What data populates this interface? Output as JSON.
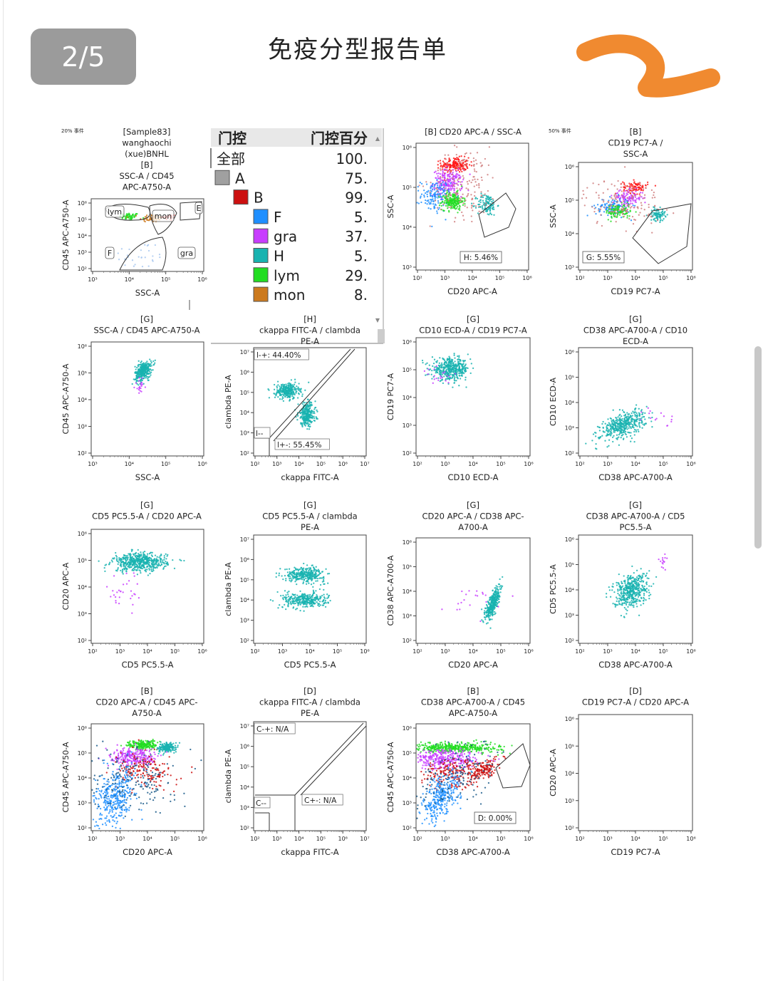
{
  "page_indicator": "2/5",
  "document_title": "免疫分型报告单",
  "colors": {
    "F": "#1f8fff",
    "gra": "#c83dff",
    "H": "#19b3b0",
    "lym": "#22dd22",
    "mon": "#cc7a1e",
    "A": "#a0a0a0",
    "B": "#cc1010",
    "annotation": "#f08a30"
  },
  "gate_table": {
    "header": {
      "gate": "门控",
      "percent": "门控百分"
    },
    "rows": [
      {
        "name": "全部",
        "value": "100.",
        "level": 0,
        "swatch": ""
      },
      {
        "name": "A",
        "value": "75.",
        "level": 1,
        "swatch": "#a0a0a0"
      },
      {
        "name": "B",
        "value": "99.",
        "level": 2,
        "swatch": "#cc1010"
      },
      {
        "name": "F",
        "value": "5.",
        "level": 3,
        "swatch": "#1f8fff"
      },
      {
        "name": "gra",
        "value": "37.",
        "level": 3,
        "swatch": "#c83dff"
      },
      {
        "name": "H",
        "value": "5.",
        "level": 3,
        "swatch": "#19b3b0"
      },
      {
        "name": "lym",
        "value": "29.",
        "level": 3,
        "swatch": "#22dd22"
      },
      {
        "name": "mon",
        "value": "8.",
        "level": 3,
        "swatch": "#cc7a1e"
      }
    ]
  },
  "chart_data": [
    {
      "type": "scatter",
      "id": "p1",
      "title_lines": [
        "[Sample83]",
        "wanghaochi",
        "(xue)BNHL",
        "[B]",
        "SSC-A / CD45",
        "APC-A750-A"
      ],
      "corner_label": "20% 事件",
      "xlabel": "SSC-A",
      "ylabel": "CD45 APC-A750-A",
      "xticks": [
        "10³",
        "10⁴",
        "10⁵",
        "10⁶"
      ],
      "yticks": [
        "10⁶",
        "10⁵",
        "10⁴",
        "10³",
        "10²"
      ],
      "gate_labels": [
        "lym",
        "mon",
        "E",
        "F",
        "gra"
      ],
      "populations": [
        "lym",
        "mon",
        "gra",
        "F",
        "H"
      ]
    },
    {
      "type": "scatter",
      "id": "p2",
      "title_lines": [
        "[B] CD20 APC-A / SSC-A"
      ],
      "xlabel": "CD20 APC-A",
      "ylabel": "SSC-A",
      "xticks": [
        "10²",
        "10³",
        "10⁴",
        "10⁵",
        "10⁶"
      ],
      "yticks": [
        "10⁶",
        "10⁵",
        "10⁴",
        "10³"
      ],
      "gate_stat": "H: 5.46%",
      "populations": [
        "gra",
        "lym",
        "F",
        "H"
      ]
    },
    {
      "type": "scatter",
      "id": "p3",
      "title_lines": [
        "[B]",
        "CD19 PC7-A /",
        "SSC-A"
      ],
      "corner_label": "50% 事件",
      "xlabel": "CD19 PC7-A",
      "ylabel": "SSC-A",
      "xticks": [
        "10²",
        "10³",
        "10⁴",
        "10⁵",
        "10⁶"
      ],
      "yticks": [
        "10⁶",
        "10⁵",
        "10⁴",
        "10³"
      ],
      "gate_stat": "G: 5.55%",
      "populations": [
        "gra",
        "lym",
        "F",
        "H"
      ]
    },
    {
      "type": "scatter",
      "id": "p4",
      "title_lines": [
        "[G]",
        "SSC-A / CD45 APC-A750-A"
      ],
      "xlabel": "SSC-A",
      "ylabel": "CD45 APC-A750-A",
      "xticks": [
        "10³",
        "10⁴",
        "10⁵",
        "10⁶"
      ],
      "yticks": [
        "10⁶",
        "10⁵",
        "10⁴",
        "10³",
        "10²"
      ],
      "populations": [
        "H"
      ]
    },
    {
      "type": "scatter",
      "id": "p5",
      "title_lines": [
        "[H]",
        "ckappa FITC-A / clambda",
        "PE-A"
      ],
      "xlabel": "ckappa FITC-A",
      "ylabel": "clambda PE-A",
      "xticks": [
        "10²",
        "10³",
        "10⁴",
        "10⁵",
        "10⁶",
        "10⁷"
      ],
      "yticks": [
        "10⁷",
        "10⁶",
        "10⁵",
        "10⁴",
        "10³",
        "10²"
      ],
      "quadrants": {
        "upper": "l-+: 44.40%",
        "lower_left": "l--",
        "lower_right": "l+-: 55.45%"
      },
      "populations": [
        "H"
      ]
    },
    {
      "type": "scatter",
      "id": "p6",
      "title_lines": [
        "[G]",
        "CD10 ECD-A / CD19 PC7-A"
      ],
      "xlabel": "CD10 ECD-A",
      "ylabel": "CD19 PC7-A",
      "xticks": [
        "10²",
        "10³",
        "10⁴",
        "10⁵",
        "10⁶"
      ],
      "yticks": [
        "10⁶",
        "10⁵",
        "10⁴",
        "10³",
        "10²"
      ],
      "populations": [
        "H"
      ]
    },
    {
      "type": "scatter",
      "id": "p7",
      "title_lines": [
        "[G]",
        "CD38 APC-A700-A / CD10",
        "ECD-A"
      ],
      "xlabel": "CD38 APC-A700-A",
      "ylabel": "CD10 ECD-A",
      "xticks": [
        "10²",
        "10³",
        "10⁴",
        "10⁵",
        "10⁶"
      ],
      "yticks": [
        "10⁶",
        "10⁵",
        "10⁴",
        "10³",
        "10²"
      ],
      "populations": [
        "H"
      ]
    },
    {
      "type": "scatter",
      "id": "p8",
      "title_lines": [
        "[G]",
        "CD5 PC5.5-A / CD20 APC-A"
      ],
      "xlabel": "CD5 PC5.5-A",
      "ylabel": "CD20 APC-A",
      "xticks": [
        "10²",
        "10³",
        "10⁴",
        "10⁵",
        "10⁶"
      ],
      "yticks": [
        "10⁶",
        "10⁵",
        "10⁴",
        "10³",
        "10²"
      ],
      "populations": [
        "H"
      ]
    },
    {
      "type": "scatter",
      "id": "p9",
      "title_lines": [
        "[G]",
        "CD5 PC5.5-A / clambda",
        "PE-A"
      ],
      "xlabel": "CD5 PC5.5-A",
      "ylabel": "clambda PE-A",
      "xticks": [
        "10²",
        "10³",
        "10⁴",
        "10⁵",
        "10⁶"
      ],
      "yticks": [
        "10⁷",
        "10⁶",
        "10⁵",
        "10⁴",
        "10³",
        "10²"
      ],
      "populations": [
        "H"
      ]
    },
    {
      "type": "scatter",
      "id": "p10",
      "title_lines": [
        "[G]",
        "CD20 APC-A / CD38 APC-",
        "A700-A"
      ],
      "xlabel": "CD20 APC-A",
      "ylabel": "CD38 APC-A700-A",
      "xticks": [
        "10²",
        "10³",
        "10⁴",
        "10⁵",
        "10⁶"
      ],
      "yticks": [
        "10⁶",
        "10⁵",
        "10⁴",
        "10³",
        "10²"
      ],
      "populations": [
        "H"
      ]
    },
    {
      "type": "scatter",
      "id": "p11",
      "title_lines": [
        "[G]",
        "CD38 APC-A700-A / CD5",
        "PC5.5-A"
      ],
      "xlabel": "CD38 APC-A700-A",
      "ylabel": "CD5 PC5.5-A",
      "xticks": [
        "10²",
        "10³",
        "10⁴",
        "10⁵",
        "10⁶"
      ],
      "yticks": [
        "10⁶",
        "10⁵",
        "10⁴",
        "10³",
        "10²"
      ],
      "populations": [
        "H"
      ]
    },
    {
      "type": "scatter",
      "id": "p12",
      "title_lines": [
        "[B]",
        "CD20 APC-A / CD45 APC-",
        "A750-A"
      ],
      "xlabel": "CD20 APC-A",
      "ylabel": "CD45 APC-A750-A",
      "xticks": [
        "10²",
        "10³",
        "10⁴",
        "10⁵",
        "10⁶"
      ],
      "yticks": [
        "10⁶",
        "10⁵",
        "10⁴",
        "10³",
        "10²"
      ],
      "populations": [
        "lym",
        "gra",
        "B",
        "F",
        "H"
      ]
    },
    {
      "type": "scatter",
      "id": "p13",
      "title_lines": [
        "[D]",
        "ckappa FITC-A / clambda",
        "PE-A"
      ],
      "xlabel": "ckappa FITC-A",
      "ylabel": "clambda PE-A",
      "xticks": [
        "10²",
        "10³",
        "10⁴",
        "10⁵",
        "10⁶",
        "10⁷"
      ],
      "yticks": [
        "10⁷",
        "10⁶",
        "10⁵",
        "10⁴",
        "10³",
        "10²"
      ],
      "quadrants": {
        "upper": "C-+: N/A",
        "lower_left": "C--",
        "lower_right": "C+-: N/A"
      },
      "populations": []
    },
    {
      "type": "scatter",
      "id": "p14",
      "title_lines": [
        "[B]",
        "CD38 APC-A700-A / CD45",
        "APC-A750-A"
      ],
      "xlabel": "CD38 APC-A700-A",
      "ylabel": "CD45 APC-A750-A",
      "xticks": [
        "10²",
        "10³",
        "10⁴",
        "10⁵",
        "10⁶"
      ],
      "yticks": [
        "10⁶",
        "10⁵",
        "10⁴",
        "10³",
        "10²"
      ],
      "gate_stat": "D: 0.00%",
      "populations": [
        "lym",
        "gra",
        "B",
        "F",
        "H"
      ]
    },
    {
      "type": "scatter",
      "id": "p15",
      "title_lines": [
        "[D]",
        "CD19 PC7-A / CD20 APC-A"
      ],
      "xlabel": "CD19 PC7-A",
      "ylabel": "CD20 APC-A",
      "xticks": [
        "10²",
        "10³",
        "10⁴",
        "10⁵",
        "10⁶"
      ],
      "yticks": [
        "10⁶",
        "10⁵",
        "10⁴",
        "10³",
        "10²"
      ],
      "populations": []
    }
  ]
}
